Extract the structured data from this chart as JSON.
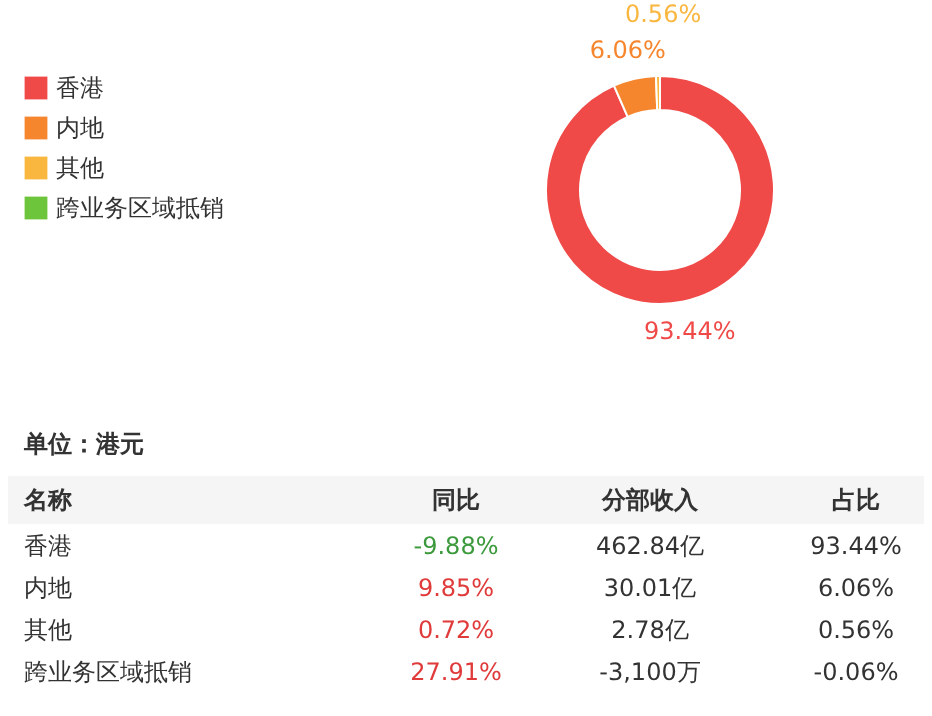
{
  "chart_data": {
    "type": "donut",
    "categories": [
      "香港",
      "内地",
      "其他",
      "跨业务区域抵销"
    ],
    "values": [
      93.44,
      6.06,
      0.56,
      null
    ],
    "colors": [
      "#ef4a48",
      "#f5862e",
      "#f9b73f",
      "#6cc53a"
    ],
    "value_labels": [
      "93.44%",
      "6.06%",
      "0.56%",
      null
    ],
    "legend": "left",
    "annotations": [
      "单位：港元",
      "名称",
      "同比",
      "分部收入",
      "占比",
      "香港",
      "-9.88%",
      "462.84亿",
      "93.44%",
      "内地",
      "9.85%",
      "30.01亿",
      "6.06%",
      "其他",
      "0.72%",
      "2.78亿",
      "0.56%",
      "跨业务区域抵销",
      "27.91%",
      "-3,100万",
      "-0.06%"
    ]
  }
}
